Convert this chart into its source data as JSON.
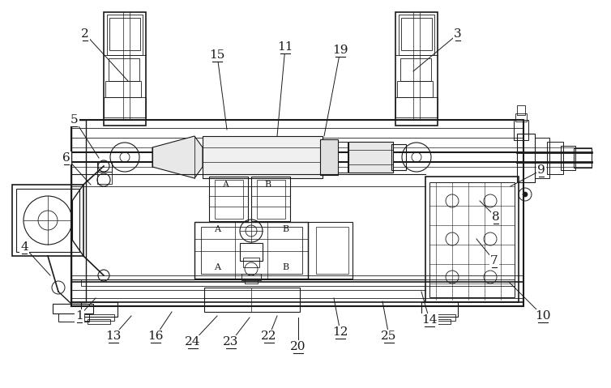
{
  "fig_width": 7.54,
  "fig_height": 4.79,
  "dpi": 100,
  "bg_color": "#ffffff",
  "lc": "#1a1a1a",
  "lw": 0.8,
  "annotations": [
    [
      "2",
      105,
      42,
      158,
      100
    ],
    [
      "3",
      565,
      42,
      510,
      88
    ],
    [
      "5",
      92,
      148,
      122,
      195
    ],
    [
      "6",
      82,
      195,
      112,
      228
    ],
    [
      "4",
      30,
      305,
      62,
      340
    ],
    [
      "1",
      98,
      390,
      118,
      368
    ],
    [
      "13",
      140,
      415,
      162,
      390
    ],
    [
      "16",
      192,
      415,
      212,
      385
    ],
    [
      "24",
      238,
      422,
      268,
      390
    ],
    [
      "23",
      285,
      422,
      308,
      392
    ],
    [
      "22",
      332,
      415,
      342,
      390
    ],
    [
      "20",
      368,
      428,
      368,
      392
    ],
    [
      "12",
      420,
      410,
      412,
      368
    ],
    [
      "25",
      480,
      415,
      472,
      372
    ],
    [
      "14",
      530,
      395,
      520,
      360
    ],
    [
      "10",
      670,
      390,
      628,
      348
    ],
    [
      "7",
      610,
      322,
      588,
      295
    ],
    [
      "8",
      612,
      268,
      592,
      248
    ],
    [
      "9",
      668,
      210,
      630,
      230
    ],
    [
      "11",
      352,
      58,
      342,
      168
    ],
    [
      "15",
      268,
      68,
      280,
      160
    ],
    [
      "19",
      420,
      62,
      400,
      168
    ]
  ]
}
